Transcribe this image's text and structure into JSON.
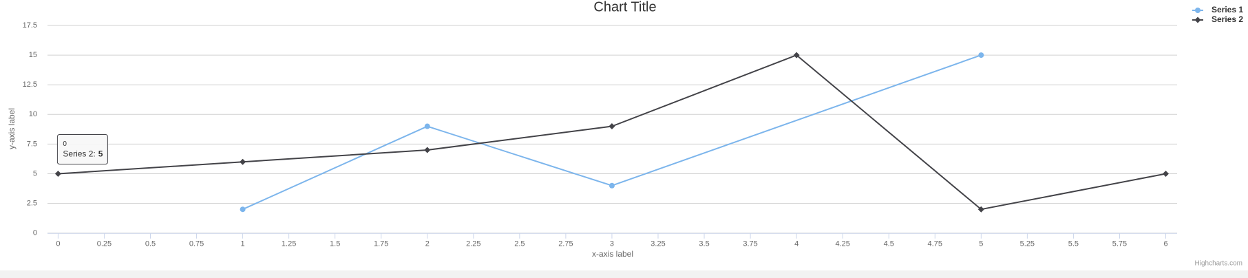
{
  "chart_data": {
    "type": "line",
    "title": "Chart Title",
    "x_label": "x-axis label",
    "y_label": "y-axis label",
    "xlim": [
      0,
      6
    ],
    "xticks": [
      0,
      0.25,
      0.5,
      0.75,
      1,
      1.25,
      1.5,
      1.75,
      2,
      2.25,
      2.5,
      2.75,
      3,
      3.25,
      3.5,
      3.75,
      4,
      4.25,
      4.5,
      4.75,
      5,
      5.25,
      5.5,
      5.75,
      6
    ],
    "ylim": [
      0,
      17.5
    ],
    "yticks": [
      0,
      2.5,
      5,
      7.5,
      10,
      12.5,
      15,
      17.5
    ],
    "grid": true,
    "legend": "top-right",
    "series": [
      {
        "name": "Series 1",
        "color": "#7cb5ec",
        "marker": "circle",
        "x": [
          1,
          2,
          3,
          5
        ],
        "values": [
          2,
          9,
          4,
          15
        ]
      },
      {
        "name": "Series 2",
        "color": "#434348",
        "marker": "diamond",
        "x": [
          0,
          1,
          2,
          3,
          4,
          5,
          6
        ],
        "values": [
          5,
          6,
          7,
          9,
          15,
          2,
          5
        ]
      }
    ],
    "tooltip": {
      "x": 0,
      "label": "Series 2:",
      "value": 5
    },
    "credits": "Highcharts.com"
  }
}
